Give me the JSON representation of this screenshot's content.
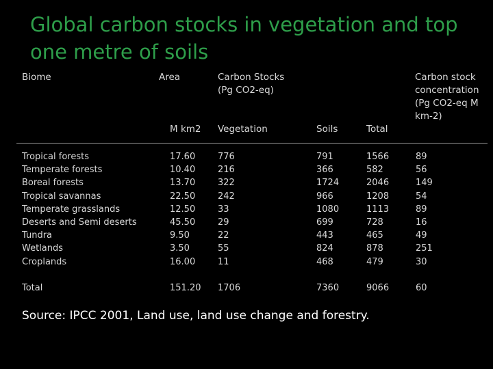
{
  "title": "Global carbon stocks in vegetation and top one metre of soils",
  "headers": {
    "biome": "Biome",
    "area": "Area",
    "carbon_stocks": "Carbon Stocks\n(Pg CO2-eq)",
    "concentration": "Carbon stock\nconcentration\n(Pg CO2-eq M\nkm-2)",
    "area_unit": "M km2",
    "vegetation": "Vegetation",
    "soils": "Soils",
    "total": "Total"
  },
  "rows": [
    {
      "biome": "Tropical forests",
      "area": "17.60",
      "vegetation": "776",
      "soils": "791",
      "total": "1566",
      "concentration": "89"
    },
    {
      "biome": "Temperate forests",
      "area": "10.40",
      "vegetation": "216",
      "soils": "366",
      "total": "582",
      "concentration": "56"
    },
    {
      "biome": "Boreal forests",
      "area": "13.70",
      "vegetation": "322",
      "soils": "1724",
      "total": "2046",
      "concentration": "149"
    },
    {
      "biome": "Tropical savannas",
      "area": "22.50",
      "vegetation": "242",
      "soils": "966",
      "total": "1208",
      "concentration": "54"
    },
    {
      "biome": "Temperate grasslands",
      "area": "12.50",
      "vegetation": "33",
      "soils": "1080",
      "total": "1113",
      "concentration": "89"
    },
    {
      "biome": "Deserts and Semi deserts",
      "area": "45.50",
      "vegetation": "29",
      "soils": "699",
      "total": "728",
      "concentration": "16"
    },
    {
      "biome": "Tundra",
      "area": "9.50",
      "vegetation": "22",
      "soils": "443",
      "total": "465",
      "concentration": "49"
    },
    {
      "biome": "Wetlands",
      "area": "3.50",
      "vegetation": "55",
      "soils": "824",
      "total": "878",
      "concentration": "251"
    },
    {
      "biome": "Croplands",
      "area": "16.00",
      "vegetation": "11",
      "soils": "468",
      "total": "479",
      "concentration": "30"
    }
  ],
  "total_row": {
    "biome": "Total",
    "area": "151.20",
    "vegetation": "1706",
    "soils": "7360",
    "total": "9066",
    "concentration": "60"
  },
  "source": "Source: IPCC 2001, Land use, land use change and forestry.",
  "colors": {
    "background": "#000000",
    "title": "#2e9e4a",
    "text": "#d8d8d8"
  }
}
